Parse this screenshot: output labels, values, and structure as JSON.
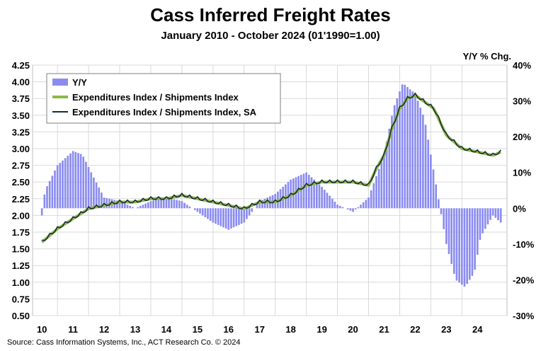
{
  "title": "Cass Inferred Freight Rates",
  "subtitle": "January 2010 - October 2024 (01'1990=1.00)",
  "right_axis_title": "Y/Y % Chg.",
  "source": "Source: Cass Information Systems, Inc., ACT Research Co. © 2024",
  "chart_data": {
    "type": "line",
    "x_tick_labels": [
      "10",
      "11",
      "12",
      "13",
      "14",
      "15",
      "16",
      "17",
      "18",
      "19",
      "20",
      "21",
      "22",
      "23",
      "24"
    ],
    "left_axis": {
      "ticks": [
        "4.25",
        "4.00",
        "3.75",
        "3.50",
        "3.25",
        "3.00",
        "2.75",
        "2.50",
        "2.25",
        "2.00",
        "1.75",
        "1.50",
        "1.25",
        "1.00",
        "0.75",
        "0.50"
      ],
      "ylim": [
        0.5,
        4.25
      ]
    },
    "right_axis": {
      "ticks": [
        "40%",
        "30%",
        "20%",
        "10%",
        "0%",
        "-10%",
        "-20%",
        "-30%"
      ],
      "ylim": [
        -30,
        40
      ]
    },
    "grid": true,
    "legend_position": "top-left",
    "legend": [
      "Y/Y",
      "Expenditures Index / Shipments Index",
      "Expenditures Index / Shipments Index, SA"
    ],
    "colors": {
      "yy": "#8b8cf0",
      "index": "#8db848",
      "index_sa": "#1a2a3a",
      "grid": "#d9d9d9"
    },
    "index_knots": [
      [
        2010.0,
        1.6
      ],
      [
        2010.5,
        1.8
      ],
      [
        2011.0,
        1.95
      ],
      [
        2011.5,
        2.1
      ],
      [
        2012.0,
        2.15
      ],
      [
        2012.5,
        2.2
      ],
      [
        2013.0,
        2.2
      ],
      [
        2013.5,
        2.25
      ],
      [
        2014.0,
        2.25
      ],
      [
        2014.5,
        2.3
      ],
      [
        2015.0,
        2.25
      ],
      [
        2015.5,
        2.2
      ],
      [
        2016.0,
        2.15
      ],
      [
        2016.5,
        2.1
      ],
      [
        2017.0,
        2.2
      ],
      [
        2017.5,
        2.2
      ],
      [
        2018.0,
        2.3
      ],
      [
        2018.5,
        2.45
      ],
      [
        2019.0,
        2.5
      ],
      [
        2019.5,
        2.5
      ],
      [
        2020.0,
        2.5
      ],
      [
        2020.5,
        2.45
      ],
      [
        2020.75,
        2.7
      ],
      [
        2021.0,
        2.9
      ],
      [
        2021.25,
        3.3
      ],
      [
        2021.5,
        3.6
      ],
      [
        2021.75,
        3.75
      ],
      [
        2022.0,
        3.8
      ],
      [
        2022.3,
        3.7
      ],
      [
        2022.6,
        3.6
      ],
      [
        2023.0,
        3.2
      ],
      [
        2023.5,
        3.0
      ],
      [
        2024.0,
        2.95
      ],
      [
        2024.5,
        2.9
      ],
      [
        2024.75,
        2.95
      ]
    ],
    "yy_knots": [
      [
        2010.0,
        -2
      ],
      [
        2010.1,
        5
      ],
      [
        2010.5,
        12
      ],
      [
        2011.0,
        16
      ],
      [
        2011.3,
        15
      ],
      [
        2011.7,
        8
      ],
      [
        2012.0,
        3
      ],
      [
        2012.5,
        2
      ],
      [
        2013.0,
        0
      ],
      [
        2013.5,
        2
      ],
      [
        2014.0,
        3
      ],
      [
        2014.5,
        2
      ],
      [
        2015.0,
        -1
      ],
      [
        2015.5,
        -4
      ],
      [
        2016.0,
        -6
      ],
      [
        2016.5,
        -4
      ],
      [
        2017.0,
        2
      ],
      [
        2017.5,
        4
      ],
      [
        2018.0,
        8
      ],
      [
        2018.5,
        10
      ],
      [
        2019.0,
        6
      ],
      [
        2019.5,
        1
      ],
      [
        2020.0,
        -1
      ],
      [
        2020.5,
        3
      ],
      [
        2021.0,
        15
      ],
      [
        2021.3,
        28
      ],
      [
        2021.6,
        35
      ],
      [
        2022.0,
        32
      ],
      [
        2022.3,
        25
      ],
      [
        2022.6,
        10
      ],
      [
        2023.0,
        -10
      ],
      [
        2023.3,
        -20
      ],
      [
        2023.6,
        -22
      ],
      [
        2023.9,
        -18
      ],
      [
        2024.1,
        -8
      ],
      [
        2024.5,
        -2
      ],
      [
        2024.75,
        -4
      ]
    ]
  }
}
